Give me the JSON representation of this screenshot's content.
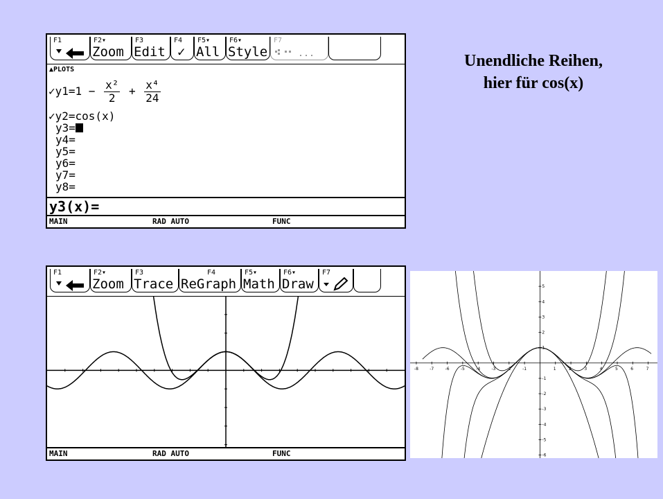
{
  "title": {
    "line1": "Unendliche Reihen,",
    "line2": "hier für cos(x)"
  },
  "screen1": {
    "toolbar": [
      {
        "key": "F1",
        "label": ""
      },
      {
        "key": "F2▾",
        "label": "Zoom"
      },
      {
        "key": "F3",
        "label": "Edit"
      },
      {
        "key": "F4",
        "label": "✓"
      },
      {
        "key": "F5▾",
        "label": "All"
      },
      {
        "key": "F6▾",
        "label": "Style"
      },
      {
        "key": "F7",
        "label": ""
      }
    ],
    "plots_label": "▲PLOTS",
    "y1_prefix": "✓y1=1 −",
    "y1_term1_num": "x²",
    "y1_term1_den": "2",
    "y1_plus": "+",
    "y1_term2_num": "x⁴",
    "y1_term2_den": "24",
    "y2": "✓y2=cos(x)",
    "y_empty": [
      "y3=",
      "y4=",
      "y5=",
      "y6=",
      "y7=",
      "y8="
    ],
    "edit_line": "y3(x)=",
    "status": {
      "mode": "MAIN",
      "angle": "RAD AUTO",
      "graph": "FUNC"
    }
  },
  "screen2": {
    "toolbar": [
      {
        "key": "F1",
        "label": ""
      },
      {
        "key": "F2▾",
        "label": "Zoom"
      },
      {
        "key": "F3",
        "label": "Trace"
      },
      {
        "key": "F4",
        "label": "ReGraph"
      },
      {
        "key": "F5▾",
        "label": "Math"
      },
      {
        "key": "F6▾",
        "label": "Draw"
      },
      {
        "key": "F7",
        "label": "▾ ✎"
      }
    ],
    "status": {
      "mode": "MAIN",
      "angle": "RAD AUTO",
      "graph": "FUNC"
    }
  },
  "plot2": {
    "x_ticks": [
      "-8",
      "-7",
      "-6",
      "-5",
      "-4",
      "-3",
      "-2",
      "-1",
      "1",
      "2",
      "3",
      "4",
      "5",
      "6",
      "7"
    ],
    "y_ticks": [
      "5",
      "4",
      "3",
      "2",
      "1",
      "-1",
      "-2",
      "-3",
      "-4",
      "-5",
      "-6"
    ]
  },
  "chart_data": {
    "type": "line",
    "title": "",
    "xlabel": "",
    "ylabel": "",
    "xlim": [
      -8,
      7.5
    ],
    "ylim": [
      -6,
      6
    ],
    "grid": false,
    "series": [
      {
        "function": "cos(x)"
      },
      {
        "function": "1 - x^2/2"
      },
      {
        "function": "1 - x^2/2 + x^4/24"
      },
      {
        "function": "1 - x^2/2 + x^4/24 - x^6/720"
      },
      {
        "function": "1 - x^2/2 + x^4/24 - x^6/720 + x^8/40320"
      },
      {
        "function": "1 - x^2/2 + x^4/24 - x^6/720 + x^8/40320 - x^10/3628800"
      }
    ]
  }
}
